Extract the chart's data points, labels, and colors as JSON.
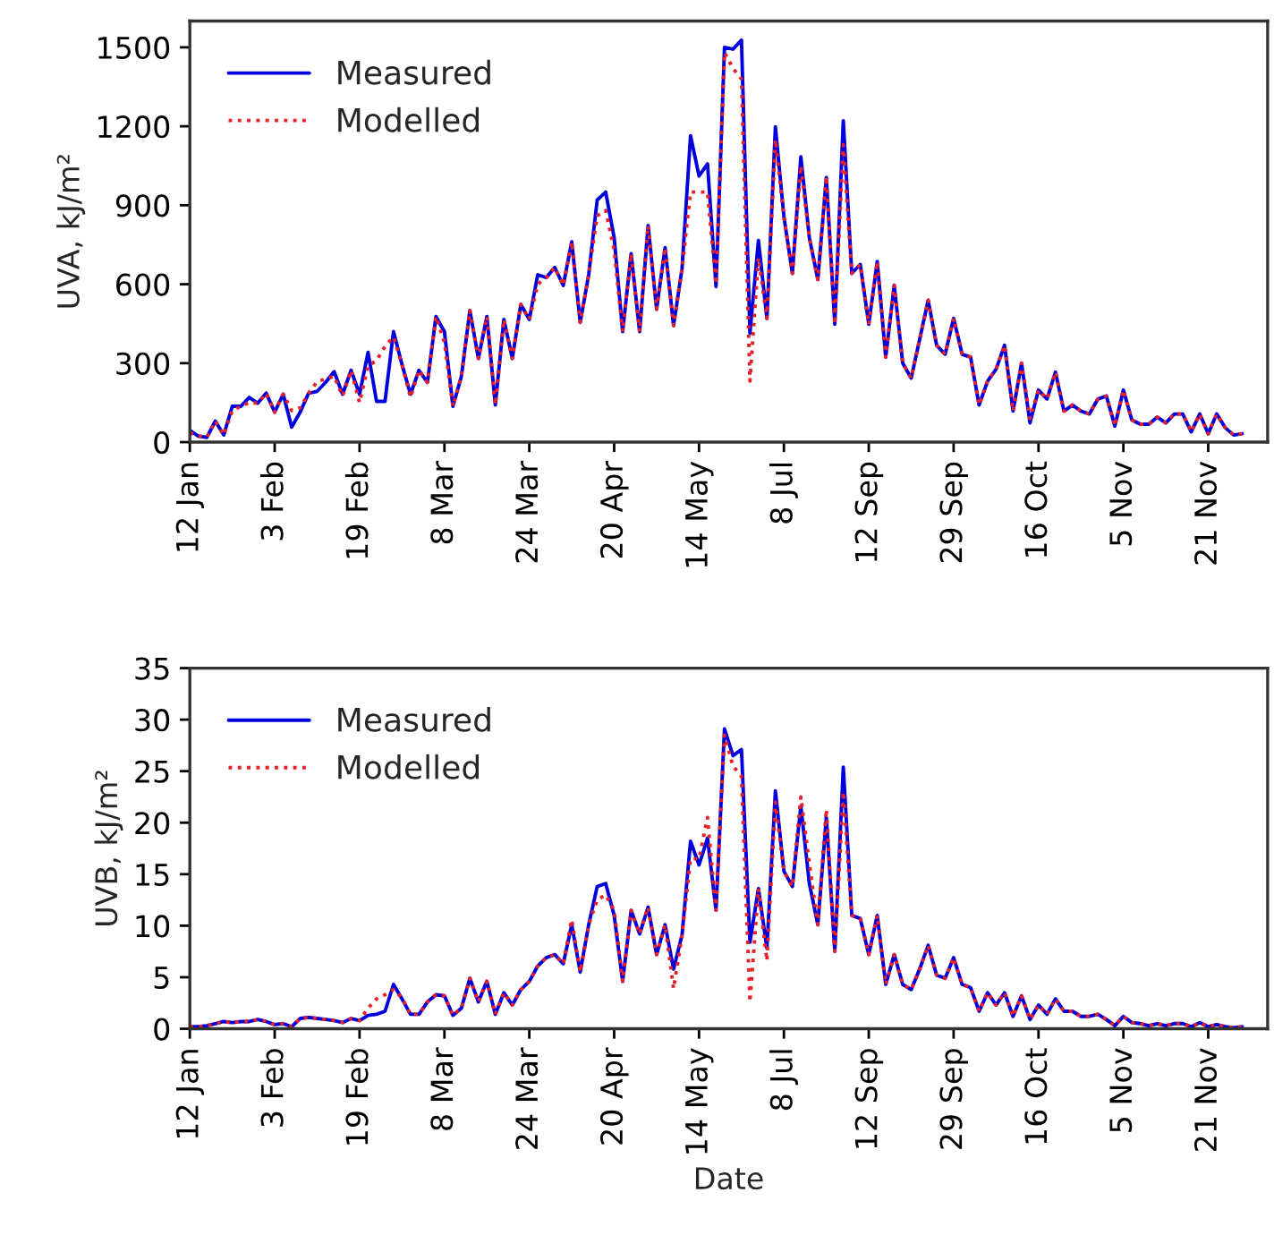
{
  "chart_data": [
    {
      "type": "line",
      "ylabel": "UVA, kJ/m²",
      "categories": [
        "12 Jan",
        null,
        null,
        null,
        null,
        null,
        null,
        null,
        null,
        null,
        "3 Feb",
        null,
        null,
        null,
        null,
        null,
        null,
        null,
        null,
        null,
        "19 Feb",
        null,
        null,
        null,
        null,
        null,
        null,
        null,
        null,
        null,
        "8 Mar",
        null,
        null,
        null,
        null,
        null,
        null,
        null,
        null,
        null,
        "24 Mar",
        null,
        null,
        null,
        null,
        null,
        null,
        null,
        null,
        null,
        "20 Apr",
        null,
        null,
        null,
        null,
        null,
        null,
        null,
        null,
        null,
        "14 May",
        null,
        null,
        null,
        null,
        null,
        null,
        null,
        null,
        null,
        "8 Jul",
        null,
        null,
        null,
        null,
        null,
        null,
        null,
        null,
        null,
        "12 Sep",
        null,
        null,
        null,
        null,
        null,
        null,
        null,
        null,
        null,
        "29 Sep",
        null,
        null,
        null,
        null,
        null,
        null,
        null,
        null,
        null,
        "16 Oct",
        null,
        null,
        null,
        null,
        null,
        null,
        null,
        null,
        null,
        "5 Nov",
        null,
        null,
        null,
        null,
        null,
        null,
        null,
        null,
        null,
        "21 Nov",
        null,
        null,
        null,
        null,
        null,
        null,
        null
      ],
      "ylim": [
        0,
        1600
      ],
      "yticks": [
        0,
        300,
        600,
        900,
        1200,
        1500
      ],
      "grid": false,
      "legend": "top left",
      "series": [
        {
          "name": "Measured",
          "color": "#0000dd",
          "line_style": "solid",
          "values": [
            45,
            23,
            18,
            80,
            27,
            136,
            136,
            170,
            148,
            186,
            114,
            182,
            57,
            114,
            186,
            193,
            227,
            268,
            182,
            273,
            182,
            341,
            155,
            155,
            420,
            295,
            182,
            273,
            227,
            477,
            420,
            136,
            250,
            500,
            318,
            477,
            141,
            466,
            318,
            523,
            466,
            636,
            625,
            664,
            595,
            761,
            455,
            636,
            920,
            950,
            777,
            420,
            716,
            420,
            823,
            505,
            739,
            443,
            659,
            1164,
            1011,
            1057,
            591,
            1500,
            1493,
            1527,
            414,
            766,
            470,
            1198,
            857,
            641,
            1084,
            777,
            618,
            1005,
            448,
            1221,
            641,
            675,
            448,
            686,
            323,
            596,
            300,
            243,
            391,
            539,
            368,
            334,
            470,
            334,
            323,
            141,
            232,
            277,
            368,
            118,
            300,
            73,
            198,
            164,
            266,
            118,
            141,
            118,
            107,
            164,
            175,
            61,
            198,
            84,
            68,
            68,
            95,
            73,
            107,
            107,
            39,
            107,
            32,
            107,
            55,
            27,
            32,
            null,
            null,
            null
          ]
        },
        {
          "name": "Modelled",
          "color": "#e8202a",
          "line_style": "dotted",
          "values": [
            35,
            23,
            18,
            80,
            27,
            120,
            136,
            150,
            148,
            186,
            114,
            182,
            120,
            130,
            186,
            230,
            240,
            250,
            175,
            273,
            150,
            290,
            310,
            364,
            400,
            295,
            170,
            273,
            227,
            477,
            380,
            136,
            250,
            500,
            318,
            477,
            141,
            466,
            318,
            523,
            466,
            600,
            625,
            664,
            595,
            761,
            455,
            636,
            860,
            880,
            730,
            420,
            716,
            420,
            823,
            505,
            739,
            443,
            659,
            950,
            950,
            950,
            600,
            1480,
            1420,
            1380,
            232,
            700,
            470,
            1150,
            857,
            641,
            1050,
            777,
            618,
            1010,
            448,
            1130,
            641,
            675,
            448,
            686,
            323,
            596,
            300,
            243,
            391,
            539,
            368,
            334,
            470,
            334,
            323,
            141,
            232,
            277,
            368,
            118,
            300,
            90,
            198,
            164,
            266,
            118,
            141,
            118,
            107,
            164,
            175,
            61,
            198,
            84,
            68,
            68,
            95,
            73,
            107,
            107,
            39,
            107,
            32,
            107,
            55,
            27,
            32,
            null,
            null,
            null
          ]
        }
      ]
    },
    {
      "type": "line",
      "xlabel": "Date",
      "ylabel": "UVB, kJ/m²",
      "categories": [
        "12 Jan",
        null,
        null,
        null,
        null,
        null,
        null,
        null,
        null,
        null,
        "3 Feb",
        null,
        null,
        null,
        null,
        null,
        null,
        null,
        null,
        null,
        "19 Feb",
        null,
        null,
        null,
        null,
        null,
        null,
        null,
        null,
        null,
        "8 Mar",
        null,
        null,
        null,
        null,
        null,
        null,
        null,
        null,
        null,
        "24 Mar",
        null,
        null,
        null,
        null,
        null,
        null,
        null,
        null,
        null,
        "20 Apr",
        null,
        null,
        null,
        null,
        null,
        null,
        null,
        null,
        null,
        "14 May",
        null,
        null,
        null,
        null,
        null,
        null,
        null,
        null,
        null,
        "8 Jul",
        null,
        null,
        null,
        null,
        null,
        null,
        null,
        null,
        null,
        "12 Sep",
        null,
        null,
        null,
        null,
        null,
        null,
        null,
        null,
        null,
        "29 Sep",
        null,
        null,
        null,
        null,
        null,
        null,
        null,
        null,
        null,
        "16 Oct",
        null,
        null,
        null,
        null,
        null,
        null,
        null,
        null,
        null,
        "5 Nov",
        null,
        null,
        null,
        null,
        null,
        null,
        null,
        null,
        null,
        "21 Nov",
        null,
        null,
        null,
        null,
        null,
        null,
        null
      ],
      "ylim": [
        0,
        35
      ],
      "yticks": [
        0,
        5,
        10,
        15,
        20,
        25,
        30,
        35
      ],
      "grid": false,
      "legend": "top left",
      "series": [
        {
          "name": "Measured",
          "color": "#0000dd",
          "line_style": "solid",
          "values": [
            0.2,
            0.2,
            0.3,
            0.5,
            0.7,
            0.6,
            0.7,
            0.7,
            0.9,
            0.7,
            0.4,
            0.5,
            0.2,
            1.0,
            1.1,
            1.0,
            0.9,
            0.8,
            0.6,
            1.0,
            0.8,
            1.3,
            1.4,
            1.7,
            4.3,
            2.9,
            1.4,
            1.4,
            2.6,
            3.3,
            3.2,
            1.3,
            2.0,
            4.9,
            2.6,
            4.6,
            1.4,
            3.5,
            2.3,
            3.8,
            4.6,
            6.1,
            6.9,
            7.2,
            6.3,
            10.1,
            5.5,
            10.1,
            13.8,
            14.1,
            11.0,
            4.6,
            11.5,
            9.2,
            11.8,
            7.2,
            10.1,
            5.8,
            9.1,
            18.2,
            15.9,
            18.5,
            11.5,
            29.1,
            26.5,
            27.1,
            8.4,
            13.6,
            7.8,
            23.1,
            15.3,
            13.8,
            21.6,
            14.1,
            10.1,
            20.5,
            7.5,
            25.4,
            11.0,
            10.7,
            7.2,
            11.0,
            4.3,
            7.2,
            4.3,
            3.8,
            5.8,
            8.1,
            5.2,
            4.9,
            6.9,
            4.3,
            4.0,
            1.7,
            3.5,
            2.3,
            3.5,
            1.2,
            3.2,
            0.9,
            2.3,
            1.4,
            2.9,
            1.7,
            1.7,
            1.2,
            1.2,
            1.4,
            0.9,
            0.3,
            1.2,
            0.6,
            0.5,
            0.3,
            0.5,
            0.3,
            0.5,
            0.5,
            0.2,
            0.6,
            0.2,
            0.4,
            0.2,
            0.1,
            0.2,
            null,
            null,
            null
          ]
        },
        {
          "name": "Modelled",
          "color": "#e8202a",
          "line_style": "dotted",
          "values": [
            0.2,
            0.2,
            0.3,
            0.5,
            0.7,
            0.6,
            0.7,
            0.7,
            0.9,
            0.7,
            0.4,
            0.5,
            0.2,
            1.0,
            1.1,
            1.0,
            0.9,
            0.8,
            0.6,
            1.0,
            0.8,
            2.0,
            2.9,
            3.3,
            3.8,
            3.0,
            1.4,
            1.4,
            2.6,
            3.3,
            3.2,
            1.3,
            2.0,
            4.9,
            2.6,
            4.6,
            1.4,
            3.5,
            2.3,
            3.8,
            4.6,
            6.1,
            6.9,
            7.2,
            6.3,
            10.6,
            5.5,
            10.1,
            12.5,
            13.0,
            11.5,
            4.6,
            11.5,
            9.2,
            11.8,
            7.2,
            10.1,
            3.9,
            9.1,
            16.5,
            16.5,
            20.5,
            11.5,
            28.5,
            25.5,
            24.5,
            2.6,
            13.6,
            6.6,
            22.0,
            15.3,
            13.8,
            22.5,
            16.0,
            10.1,
            21.3,
            7.5,
            23.0,
            11.0,
            10.7,
            7.2,
            11.0,
            4.3,
            7.2,
            4.3,
            3.8,
            5.8,
            8.1,
            5.2,
            4.9,
            6.9,
            4.3,
            4.0,
            1.7,
            3.5,
            2.3,
            3.5,
            1.2,
            3.2,
            0.9,
            2.3,
            1.4,
            2.9,
            1.7,
            1.7,
            1.2,
            1.2,
            1.4,
            0.9,
            0.3,
            1.2,
            0.6,
            0.5,
            0.3,
            0.5,
            0.3,
            0.5,
            0.5,
            0.2,
            0.6,
            0.2,
            0.4,
            0.2,
            0.1,
            0.2,
            null,
            null,
            null
          ]
        }
      ]
    }
  ]
}
